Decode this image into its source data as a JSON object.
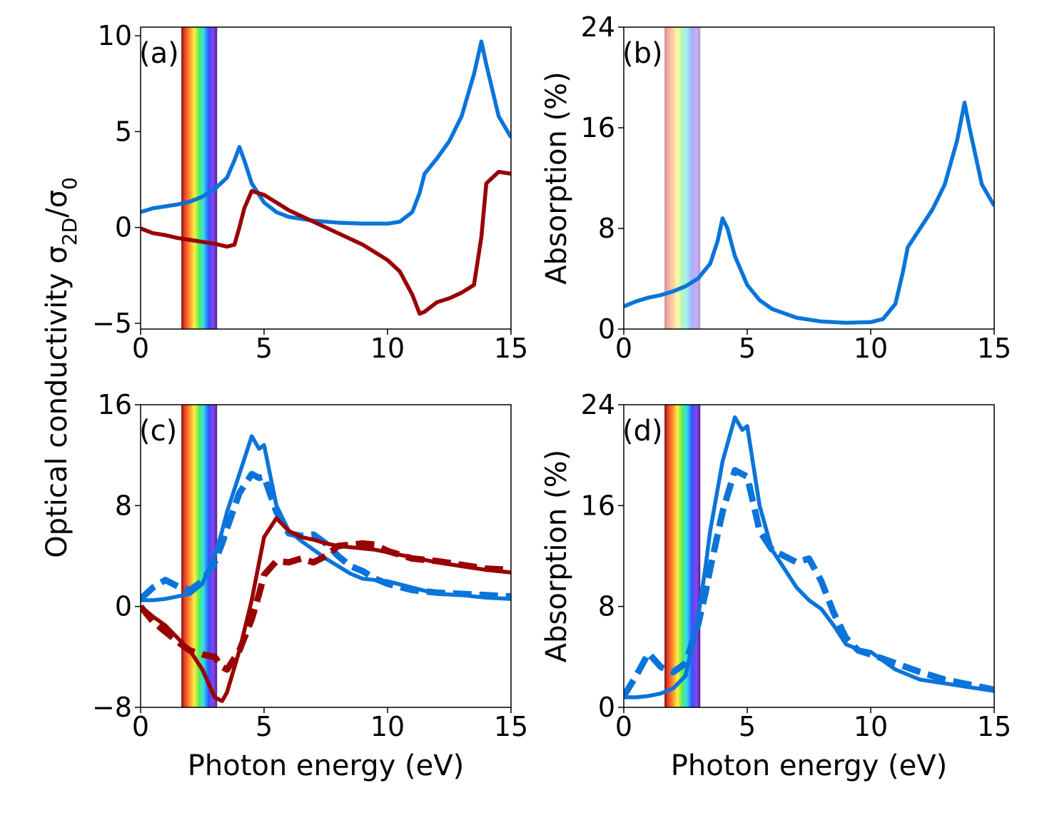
{
  "ylabel": [
    {
      "text": "Optical conductivity σ"
    },
    {
      "text": "2D",
      "sub": true
    },
    {
      "text": "/σ"
    },
    {
      "text": "0",
      "sub": true
    }
  ],
  "chart_data": [
    {
      "type": "line",
      "annotation": "(a)",
      "xlim": [
        0,
        15
      ],
      "xticks": [
        0,
        5,
        10,
        15
      ],
      "ylim": [
        -5.3,
        10.45
      ],
      "yticks": [
        {
          "value": -5,
          "label": "−5"
        },
        0,
        5,
        10
      ],
      "highlight_xrange": [
        1.65,
        3.1
      ],
      "highlight_opacity": 1,
      "x": [
        0,
        0.5,
        1,
        1.5,
        2,
        2.5,
        3,
        3.5,
        3.8,
        4,
        4.2,
        4.5,
        5,
        5.5,
        6,
        7,
        8,
        9,
        10,
        10.5,
        11,
        11.3,
        11.5,
        12,
        12.5,
        13,
        13.5,
        13.8,
        14,
        14.5,
        15
      ],
      "series": [
        {
          "color": "#0a74da",
          "linestyle": "solid",
          "values": [
            0.8,
            1.0,
            1.1,
            1.2,
            1.35,
            1.6,
            2.0,
            2.6,
            3.5,
            4.2,
            3.5,
            2.3,
            1.3,
            0.8,
            0.55,
            0.35,
            0.25,
            0.2,
            0.2,
            0.3,
            0.8,
            1.8,
            2.8,
            3.6,
            4.5,
            5.8,
            8.0,
            9.7,
            8.5,
            5.8,
            4.7
          ]
        },
        {
          "color": "#990000",
          "linestyle": "solid",
          "values": [
            -0.05,
            -0.3,
            -0.4,
            -0.55,
            -0.65,
            -0.75,
            -0.85,
            -1.0,
            -0.9,
            0,
            1.0,
            1.9,
            1.7,
            1.3,
            0.9,
            0.3,
            -0.3,
            -0.9,
            -1.7,
            -2.3,
            -3.5,
            -4.5,
            -4.4,
            -3.9,
            -3.7,
            -3.4,
            -3.0,
            -0.5,
            2.3,
            2.9,
            2.8
          ]
        }
      ]
    },
    {
      "type": "line",
      "annotation": "(b)",
      "ylabel": "Absorption (%)",
      "xlim": [
        0,
        15
      ],
      "xticks": [
        0,
        5,
        10,
        15
      ],
      "ylim": [
        0,
        24
      ],
      "yticks": [
        0,
        8,
        16,
        24
      ],
      "highlight_xrange": [
        1.65,
        3.1
      ],
      "highlight_opacity": 0.45,
      "x": [
        0,
        0.5,
        1,
        1.5,
        2,
        2.5,
        3,
        3.5,
        3.8,
        4,
        4.2,
        4.5,
        5,
        5.5,
        6,
        7,
        8,
        9,
        10,
        10.5,
        11,
        11.3,
        11.5,
        12,
        12.5,
        13,
        13.5,
        13.8,
        14,
        14.5,
        15
      ],
      "series": [
        {
          "color": "#0a74da",
          "linestyle": "solid",
          "values": [
            1.8,
            2.2,
            2.5,
            2.7,
            3.0,
            3.4,
            4.0,
            5.2,
            7.0,
            8.8,
            8.0,
            5.8,
            3.5,
            2.3,
            1.6,
            0.9,
            0.6,
            0.5,
            0.55,
            0.8,
            2.0,
            4.5,
            6.5,
            8.0,
            9.5,
            11.5,
            15.0,
            18.0,
            16.0,
            11.5,
            9.8
          ]
        }
      ]
    },
    {
      "type": "line",
      "annotation": "(c)",
      "xlabel": "Photon energy (eV)",
      "xlim": [
        0,
        15
      ],
      "xticks": [
        0,
        5,
        10,
        15
      ],
      "ylim": [
        -8,
        16
      ],
      "yticks": [
        {
          "value": -8,
          "label": "−8"
        },
        0,
        8,
        16
      ],
      "highlight_xrange": [
        1.65,
        3.1
      ],
      "highlight_opacity": 1,
      "x": [
        0,
        0.5,
        1,
        1.5,
        2,
        2.5,
        3,
        3.3,
        3.5,
        4,
        4.5,
        4.8,
        5,
        5.5,
        6,
        6.5,
        7,
        7.5,
        8,
        8.5,
        9,
        9.5,
        10,
        11,
        12,
        13,
        14,
        15
      ],
      "series": [
        {
          "color": "#0a74da",
          "linestyle": "solid",
          "values": [
            0.5,
            0.5,
            0.6,
            0.8,
            1.0,
            1.8,
            4.0,
            6,
            7.5,
            10.5,
            13.5,
            12.5,
            12.8,
            8,
            6.0,
            5.2,
            4.5,
            3.8,
            3.2,
            2.6,
            2.2,
            2.1,
            2.0,
            1.5,
            1.0,
            0.9,
            0.7,
            0.6
          ]
        },
        {
          "color": "#0a74da",
          "linestyle": "dashed",
          "values": [
            0.6,
            1.5,
            2.1,
            1.6,
            1.3,
            2.0,
            3.5,
            5,
            6.2,
            9.0,
            10.5,
            10.2,
            10.3,
            7.5,
            5.8,
            5.6,
            5.7,
            5.0,
            4.0,
            3.2,
            2.8,
            2.2,
            1.8,
            1.3,
            1.1,
            1.0,
            0.9,
            0.8
          ]
        },
        {
          "color": "#990000",
          "linestyle": "solid",
          "values": [
            0,
            -0.8,
            -1.5,
            -2.5,
            -3.5,
            -5.0,
            -7.2,
            -7.5,
            -6.8,
            -3.5,
            0.5,
            3.5,
            5.5,
            7.0,
            6.0,
            5.5,
            5.3,
            5.0,
            4.8,
            4.7,
            4.6,
            4.5,
            4.3,
            3.9,
            3.5,
            3.2,
            2.9,
            2.7
          ]
        },
        {
          "color": "#990000",
          "linestyle": "dashed",
          "values": [
            0,
            -1.2,
            -2.0,
            -2.8,
            -3.5,
            -3.8,
            -4.0,
            -4.8,
            -5.0,
            -3.5,
            -1.0,
            1.0,
            2.5,
            3.6,
            3.5,
            3.8,
            3.5,
            4.0,
            4.8,
            4.9,
            5.0,
            4.9,
            4.4,
            3.8,
            3.6,
            3.3,
            3.0,
            2.9
          ]
        }
      ]
    },
    {
      "type": "line",
      "annotation": "(d)",
      "xlabel": "Photon energy (eV)",
      "ylabel": "Absorption (%)",
      "xlim": [
        0,
        15
      ],
      "xticks": [
        0,
        5,
        10,
        15
      ],
      "ylim": [
        0,
        24
      ],
      "yticks": [
        0,
        8,
        16,
        24
      ],
      "highlight_xrange": [
        1.65,
        3.1
      ],
      "highlight_opacity": 1,
      "x": [
        0,
        0.5,
        1,
        1.5,
        2,
        2.5,
        3,
        3.3,
        3.5,
        4,
        4.5,
        4.8,
        5,
        5.5,
        6,
        6.5,
        7,
        7.5,
        8,
        8.5,
        9,
        9.5,
        10,
        11,
        12,
        13,
        14,
        15
      ],
      "series": [
        {
          "color": "#0a74da",
          "linestyle": "solid",
          "values": [
            0.8,
            0.8,
            0.9,
            1.1,
            1.5,
            2.5,
            7,
            11,
            14,
            19.5,
            23,
            22,
            22.3,
            16,
            12.5,
            11,
            9.5,
            8.5,
            7.8,
            6.5,
            5.0,
            4.6,
            4.4,
            3.0,
            2.2,
            1.9,
            1.6,
            1.3
          ]
        },
        {
          "color": "#0a74da",
          "linestyle": "dashed",
          "values": [
            0.9,
            2.5,
            4.3,
            3.2,
            2.8,
            3.5,
            6.5,
            9,
            11,
            15.5,
            18.8,
            18.5,
            18.3,
            14,
            12.5,
            12.0,
            11.5,
            11.8,
            10.0,
            7.5,
            5.5,
            4.5,
            4.2,
            3.5,
            2.8,
            2.2,
            1.8,
            1.4
          ]
        }
      ]
    }
  ]
}
